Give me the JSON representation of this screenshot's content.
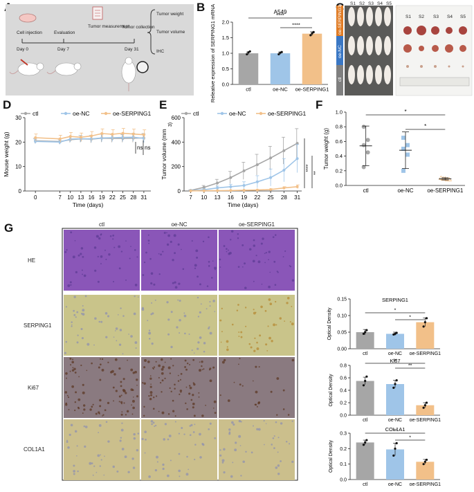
{
  "panel_letters": {
    "A": "A",
    "B": "B",
    "C": "C",
    "D": "D",
    "E": "E",
    "F": "F",
    "G": "G"
  },
  "schematic": {
    "steps": [
      "Cell injection",
      "Evaluation",
      "Tumor measurement",
      "Tumor collection"
    ],
    "days": [
      "Day 0",
      "Day 7",
      "Day 31"
    ],
    "outputs": [
      "Tumor weight",
      "Tumor volume",
      "IHC"
    ]
  },
  "photo_panel": {
    "mouse_col_labels": [
      "S1",
      "S2",
      "S3",
      "S4",
      "S5"
    ],
    "tumor_col_labels": [
      "S1",
      "S2",
      "S3",
      "S4",
      "S5"
    ],
    "group_labels": [
      "oe-SERPING1",
      "oe-NC",
      "ctl"
    ]
  },
  "ihc": {
    "col_headers": [
      "ctl",
      "oe-NC",
      "oe-SERPING1"
    ],
    "row_labels": [
      "HE",
      "SERPING1",
      "Ki67",
      "COL1A1"
    ],
    "stain_colors": {
      "HE": "#8a56b8",
      "SERPING1": "#c9c48a",
      "Ki67": "#8a7a80",
      "COL1A1": "#cbbf8c"
    }
  },
  "colors": {
    "ctl": "#a6a6a6",
    "oeNC": "#9fc5e8",
    "oeSERPING1": "#f2c089"
  },
  "chart_data": [
    {
      "id": "B",
      "type": "bar",
      "title": "A549",
      "ylabel": "Releative expression of SERPING1 mRNA",
      "categories": [
        "ctl",
        "oe-NC",
        "oe-SERPING1"
      ],
      "values": [
        1.0,
        1.0,
        1.63
      ],
      "errors": [
        0.04,
        0.04,
        0.06
      ],
      "points": [
        [
          0.97,
          1.03,
          1.06
        ],
        [
          0.97,
          1.02,
          1.04
        ],
        [
          1.58,
          1.64,
          1.68
        ]
      ],
      "ylim": [
        0,
        2.0
      ],
      "yticks": [
        0.0,
        0.5,
        1.0,
        1.5,
        2.0
      ],
      "ytick_labels": [
        "0.0",
        "0.5",
        "1.0",
        "1.5",
        "2.0"
      ],
      "significance": [
        {
          "from": 0,
          "to": 2,
          "label": "****"
        },
        {
          "from": 1,
          "to": 2,
          "label": "****"
        }
      ]
    },
    {
      "id": "D",
      "type": "line",
      "xlabel": "Time (days)",
      "ylabel": "Mouse weight (g)",
      "x": [
        0,
        7,
        10,
        13,
        16,
        19,
        22,
        25,
        28,
        31
      ],
      "xtick_labels": [
        "0",
        "7",
        "10",
        "13",
        "16",
        "19",
        "22",
        "25",
        "28",
        "31"
      ],
      "series": [
        {
          "name": "ctl",
          "values": [
            20.5,
            20.2,
            21.0,
            21.3,
            21.2,
            21.6,
            21.5,
            21.5,
            21.6,
            21.7
          ],
          "errors": [
            1.0,
            1.0,
            1.2,
            1.4,
            1.5,
            1.6,
            1.6,
            1.6,
            1.7,
            1.8
          ]
        },
        {
          "name": "oe-NC",
          "values": [
            20.3,
            20.0,
            21.2,
            21.4,
            21.3,
            21.7,
            21.8,
            21.9,
            22.0,
            21.5
          ],
          "errors": [
            0.9,
            0.9,
            1.1,
            1.3,
            1.4,
            1.5,
            1.5,
            1.6,
            1.6,
            1.7
          ]
        },
        {
          "name": "oe-SERPING1",
          "values": [
            21.8,
            21.3,
            22.3,
            22.0,
            22.5,
            23.5,
            23.2,
            23.6,
            23.3,
            23.0
          ],
          "errors": [
            1.5,
            1.5,
            1.6,
            1.7,
            1.8,
            1.9,
            1.9,
            2.0,
            2.0,
            2.0
          ]
        }
      ],
      "ylim": [
        0,
        30
      ],
      "yticks": [
        0,
        10,
        20,
        30
      ],
      "ytick_labels": [
        "0",
        "10",
        "20",
        "30"
      ],
      "annotations": [
        "ns",
        "ns"
      ],
      "legend": "top"
    },
    {
      "id": "E",
      "type": "line",
      "xlabel": "Time (days)",
      "ylabel": "Tumor volume (mm",
      "ylabel_sup": "3)",
      "x": [
        7,
        10,
        13,
        16,
        19,
        22,
        25,
        28,
        31
      ],
      "xtick_labels": [
        "7",
        "10",
        "13",
        "16",
        "19",
        "22",
        "25",
        "28",
        "31"
      ],
      "series": [
        {
          "name": "ctl",
          "values": [
            5,
            30,
            65,
            110,
            165,
            215,
            270,
            330,
            390
          ],
          "errors": [
            5,
            15,
            30,
            50,
            70,
            85,
            95,
            110,
            120
          ]
        },
        {
          "name": "oe-NC",
          "values": [
            3,
            10,
            25,
            35,
            45,
            75,
            110,
            170,
            265
          ],
          "errors": [
            3,
            8,
            15,
            20,
            30,
            50,
            70,
            95,
            115
          ]
        },
        {
          "name": "oe-SERPING1",
          "values": [
            1,
            2,
            3,
            4,
            6,
            8,
            12,
            25,
            35
          ],
          "errors": [
            1,
            1,
            2,
            2,
            3,
            4,
            6,
            10,
            15
          ]
        }
      ],
      "ylim": [
        0,
        600
      ],
      "yticks": [
        0,
        200,
        400,
        600
      ],
      "ytick_labels": [
        "0",
        "200",
        "400",
        "600"
      ],
      "significance": [
        "****",
        "**"
      ],
      "legend": "top"
    },
    {
      "id": "F",
      "type": "scatter",
      "ylabel": "Tumor weight (g)",
      "categories": [
        "ctl",
        "oe-NC",
        "oe-SERPING1"
      ],
      "points": [
        [
          0.8,
          0.62,
          0.55,
          0.45,
          0.25
        ],
        [
          0.65,
          0.55,
          0.5,
          0.42,
          0.2
        ],
        [
          0.1,
          0.09,
          0.09,
          0.08,
          0.08
        ]
      ],
      "means": [
        0.54,
        0.48,
        0.09
      ],
      "sd": [
        0.27,
        0.25,
        0.015
      ],
      "ylim": [
        0,
        1.0
      ],
      "yticks": [
        0.0,
        0.2,
        0.4,
        0.6,
        0.8,
        1.0
      ],
      "ytick_labels": [
        "0.0",
        "0.2",
        "0.4",
        "0.6",
        "0.8",
        "1.0"
      ],
      "significance": [
        {
          "from": 0,
          "to": 2,
          "label": "*"
        },
        {
          "from": 1,
          "to": 2,
          "label": "*"
        }
      ]
    },
    {
      "id": "G1",
      "type": "bar",
      "title": "SERPING1",
      "ylabel": "Optical Density",
      "categories": [
        "ctl",
        "oe-NC",
        "oe-SERPING1"
      ],
      "values": [
        0.05,
        0.045,
        0.08
      ],
      "errors": [
        0.008,
        0.005,
        0.013
      ],
      "points": [
        [
          0.045,
          0.05,
          0.056
        ],
        [
          0.043,
          0.045,
          0.048
        ],
        [
          0.067,
          0.08,
          0.092
        ]
      ],
      "ylim": [
        0,
        0.15
      ],
      "yticks": [
        0.0,
        0.05,
        0.1,
        0.15
      ],
      "ytick_labels": [
        "0.00",
        "0.05",
        "0.10",
        "0.15"
      ],
      "significance": [
        {
          "from": 0,
          "to": 2,
          "label": "*"
        },
        {
          "from": 1,
          "to": 2,
          "label": "*"
        }
      ]
    },
    {
      "id": "G2",
      "type": "bar",
      "title": "Ki67",
      "ylabel": "Optical Density",
      "categories": [
        "ctl",
        "oe-NC",
        "oe-SERPING1"
      ],
      "values": [
        0.55,
        0.5,
        0.16
      ],
      "errors": [
        0.06,
        0.06,
        0.04
      ],
      "points": [
        [
          0.48,
          0.55,
          0.62
        ],
        [
          0.44,
          0.5,
          0.56
        ],
        [
          0.12,
          0.16,
          0.2
        ]
      ],
      "ylim": [
        0,
        0.8
      ],
      "yticks": [
        0.0,
        0.2,
        0.4,
        0.6,
        0.8
      ],
      "ytick_labels": [
        "0.0",
        "0.2",
        "0.4",
        "0.6",
        "0.8"
      ],
      "significance": [
        {
          "from": 0,
          "to": 2,
          "label": "**"
        },
        {
          "from": 1,
          "to": 2,
          "label": "**"
        }
      ]
    },
    {
      "id": "G3",
      "type": "bar",
      "title": "COL1A1",
      "ylabel": "Optical Density",
      "categories": [
        "ctl",
        "oe-NC",
        "oe-SERPING1"
      ],
      "values": [
        0.24,
        0.195,
        0.115
      ],
      "errors": [
        0.015,
        0.04,
        0.015
      ],
      "points": [
        [
          0.225,
          0.24,
          0.255
        ],
        [
          0.155,
          0.2,
          0.235
        ],
        [
          0.1,
          0.115,
          0.128
        ]
      ],
      "ylim": [
        0,
        0.3
      ],
      "yticks": [
        0.0,
        0.1,
        0.2,
        0.3
      ],
      "ytick_labels": [
        "0.0",
        "0.1",
        "0.2",
        "0.3"
      ],
      "significance": [
        {
          "from": 0,
          "to": 2,
          "label": "**"
        },
        {
          "from": 1,
          "to": 2,
          "label": "*"
        }
      ]
    }
  ]
}
